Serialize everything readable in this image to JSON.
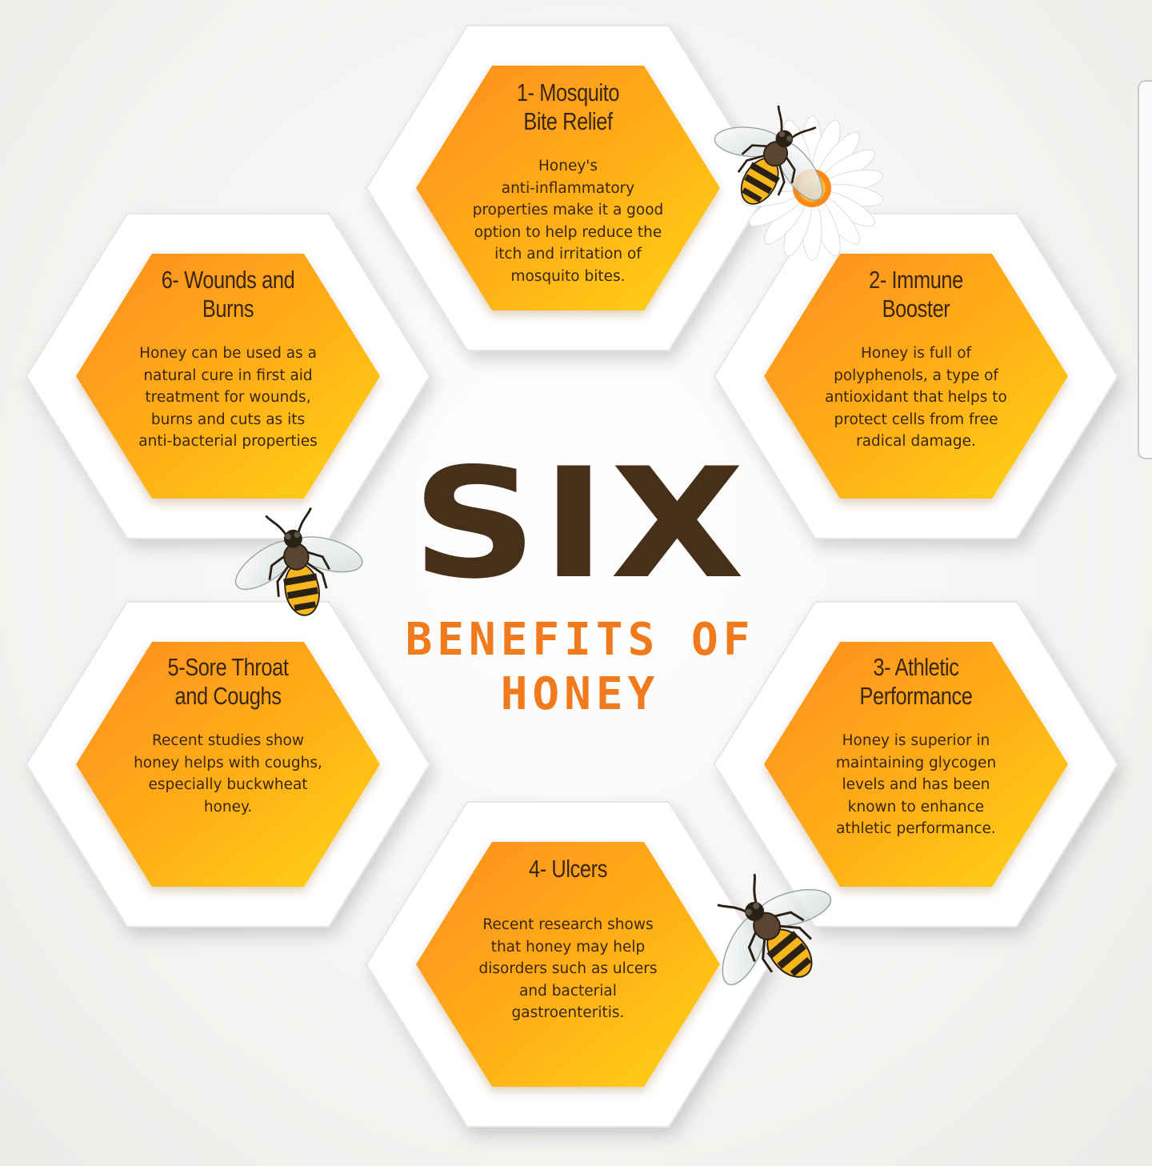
{
  "headline": {
    "six": "SIX",
    "benefits": "BENEFITS OF",
    "honey": "HONEY"
  },
  "benefits": [
    {
      "title": "1- Mosquito\nBite Relief",
      "description": "Honey's\nanti-inflammatory\nproperties make it a good\noption to help reduce the\nitch and irritation of\nmosquito bites."
    },
    {
      "title": "2- Immune\nBooster",
      "description": "Honey is full of\npolyphenols, a type of\nantioxidant that helps to\nprotect cells from free\nradical damage."
    },
    {
      "title": "3- Athletic\nPerformance",
      "description": "Honey is superior in\nmaintaining glycogen\nlevels and has been\nknown to enhance\nathletic performance."
    },
    {
      "title": "4- Ulcers",
      "description": "Recent research shows\nthat honey may help\ndisorders such as ulcers\nand bacterial\ngastroenteritis."
    },
    {
      "title": "5-Sore Throat\nand Coughs",
      "description": "Recent studies show\nhoney helps with coughs,\nespecially buckwheat\nhoney."
    },
    {
      "title": "6- Wounds and\nBurns",
      "description": "Honey can be used as a\nnatural cure in first aid\ntreatment for wounds,\nburns and cuts as its\nanti-bacterial properties"
    }
  ],
  "colors": {
    "honeycomb_fill_top": "#ff9a1c",
    "honeycomb_fill_bottom": "#ffcf12",
    "frame_white": "#ffffff",
    "headline_brown": "#47301a",
    "headline_orange": "#f07a1c"
  },
  "decorations": [
    "bee-icon",
    "bee-icon",
    "bee-icon",
    "daisy-flower-icon"
  ]
}
